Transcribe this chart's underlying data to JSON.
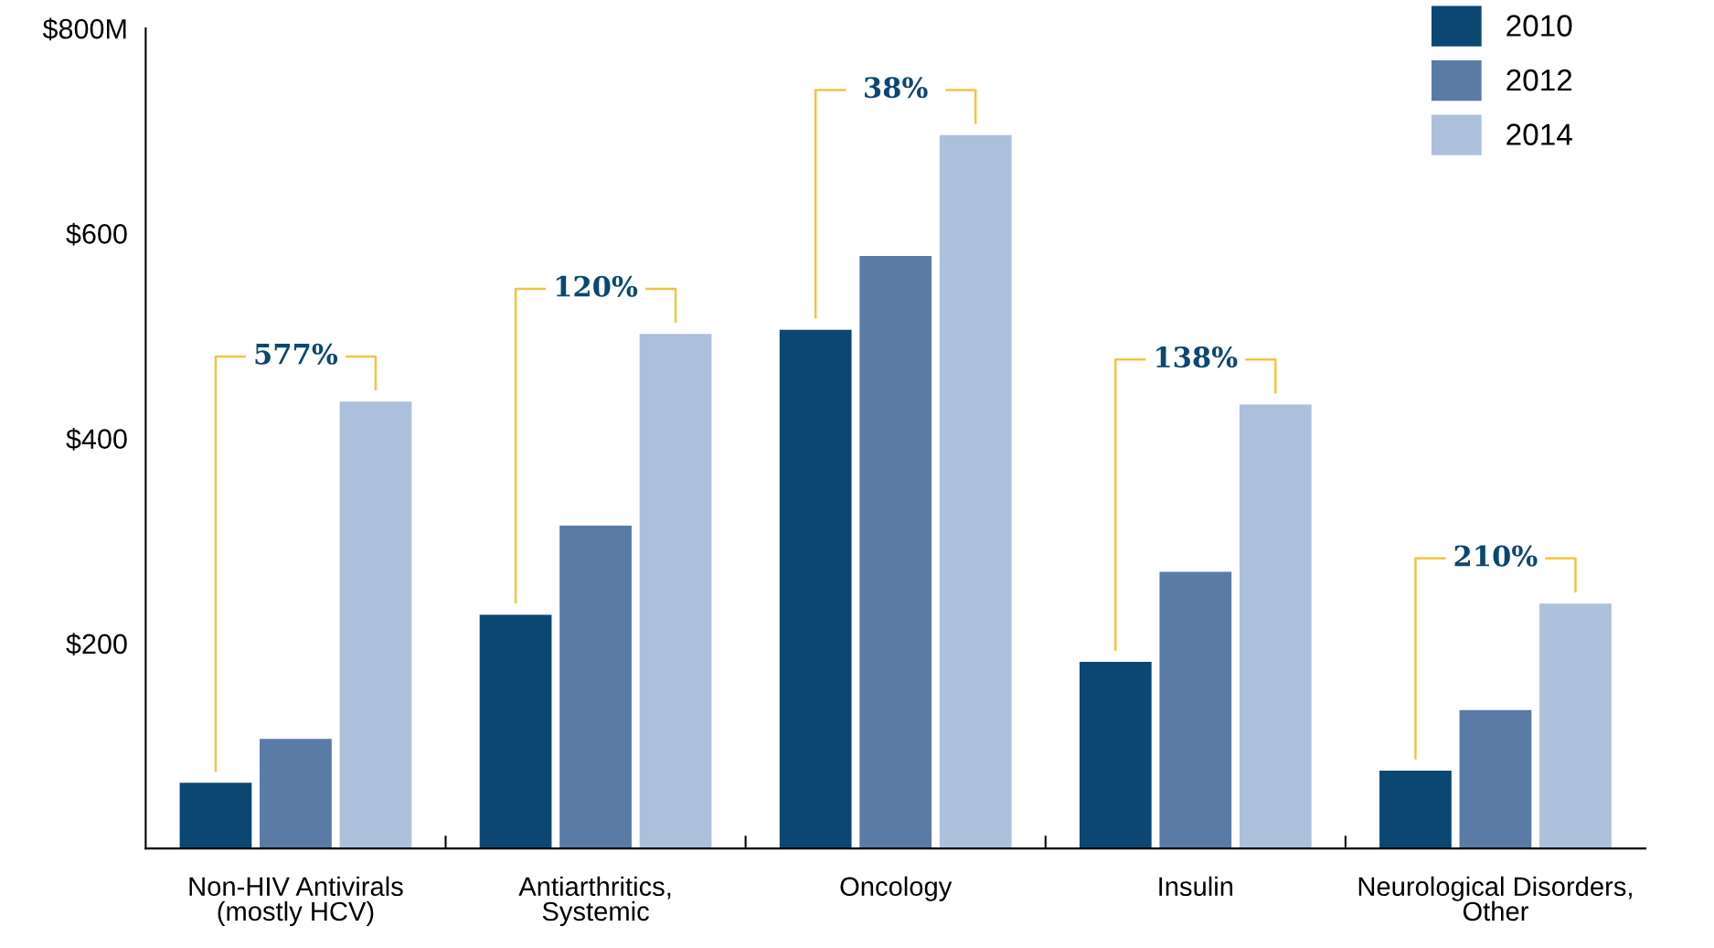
{
  "chart_data": {
    "type": "bar",
    "categories": [
      "Non-HIV Antivirals\n(mostly HCV)",
      "Antiarthritics,\nSystemic",
      "Oncology",
      "Insulin",
      "Neurological Disorders,\nOther"
    ],
    "series": [
      {
        "name": "2010",
        "color": "#0b4772",
        "values": [
          64,
          228,
          506,
          182,
          76
        ]
      },
      {
        "name": "2012",
        "color": "#5a7ba5",
        "values": [
          107,
          315,
          578,
          270,
          135
        ]
      },
      {
        "name": "2014",
        "color": "#adc0db",
        "values": [
          436,
          502,
          696,
          433,
          239
        ]
      }
    ],
    "ylim": [
      0,
      800
    ],
    "yticks": [
      {
        "value": 200,
        "label": "$200"
      },
      {
        "value": 400,
        "label": "$400"
      },
      {
        "value": 600,
        "label": "$600"
      },
      {
        "value": 800,
        "label": "$800M"
      }
    ],
    "annotations": [
      "577%",
      "120%",
      "38%",
      "138%",
      "210%"
    ],
    "grid": false,
    "legend": "top right"
  }
}
